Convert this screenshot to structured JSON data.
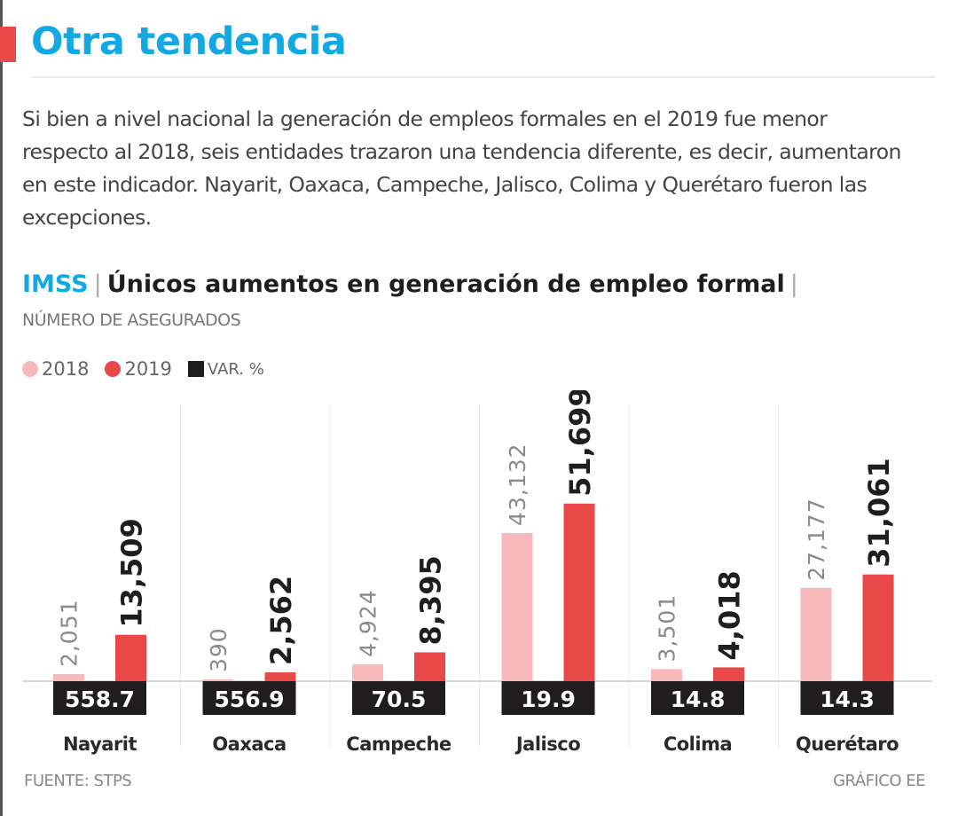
{
  "header": {
    "title": "Otra tendencia",
    "intro": "Si bien a nivel nacional la generación de empleos formales en el 2019 fue menor respecto al 2018, seis entidades trazaron una tendencia diferente, es decir, aumentaron en este indicador. Nayarit, Oaxaca, Campeche, Jalisco, Colima y Querétaro fueron las excepciones."
  },
  "colors": {
    "title": "#12a8e2",
    "accent": "#e94848",
    "series_2018": "#f7b9b9",
    "series_2019": "#e94848",
    "var_box": "#1f1d1e"
  },
  "chart_data": {
    "type": "bar",
    "source_label": "IMSS",
    "title": "Únicos aumentos en generación de empleo formal",
    "ylabel": "NÚMERO DE ASEGURADOS",
    "xlabel": "",
    "categories": [
      "Nayarit",
      "Oaxaca",
      "Campeche",
      "Jalisco",
      "Colima",
      "Querétaro"
    ],
    "series": [
      {
        "name": "2018",
        "values": [
          2051,
          390,
          4924,
          43132,
          3501,
          27177
        ],
        "labels": [
          "2,051",
          "390",
          "4,924",
          "43,132",
          "3,501",
          "27,177"
        ]
      },
      {
        "name": "2019",
        "values": [
          13509,
          2562,
          8395,
          51699,
          4018,
          31061
        ],
        "labels": [
          "13,509",
          "2,562",
          "8,395",
          "51,699",
          "4,018",
          "31,061"
        ]
      }
    ],
    "variation": {
      "name": "VAR. %",
      "values": [
        558.7,
        556.9,
        70.5,
        19.9,
        14.8,
        14.3
      ],
      "labels": [
        "558.7",
        "556.9",
        "70.5",
        "19.9",
        "14.8",
        "14.3"
      ]
    },
    "legend": [
      "2018",
      "2019",
      "VAR. %"
    ],
    "legend_position": "top-left",
    "ylim": [
      0,
      55000
    ],
    "grid": false
  },
  "footer": {
    "source": "FUENTE: STPS",
    "credit": "GRÁFICO EE"
  }
}
